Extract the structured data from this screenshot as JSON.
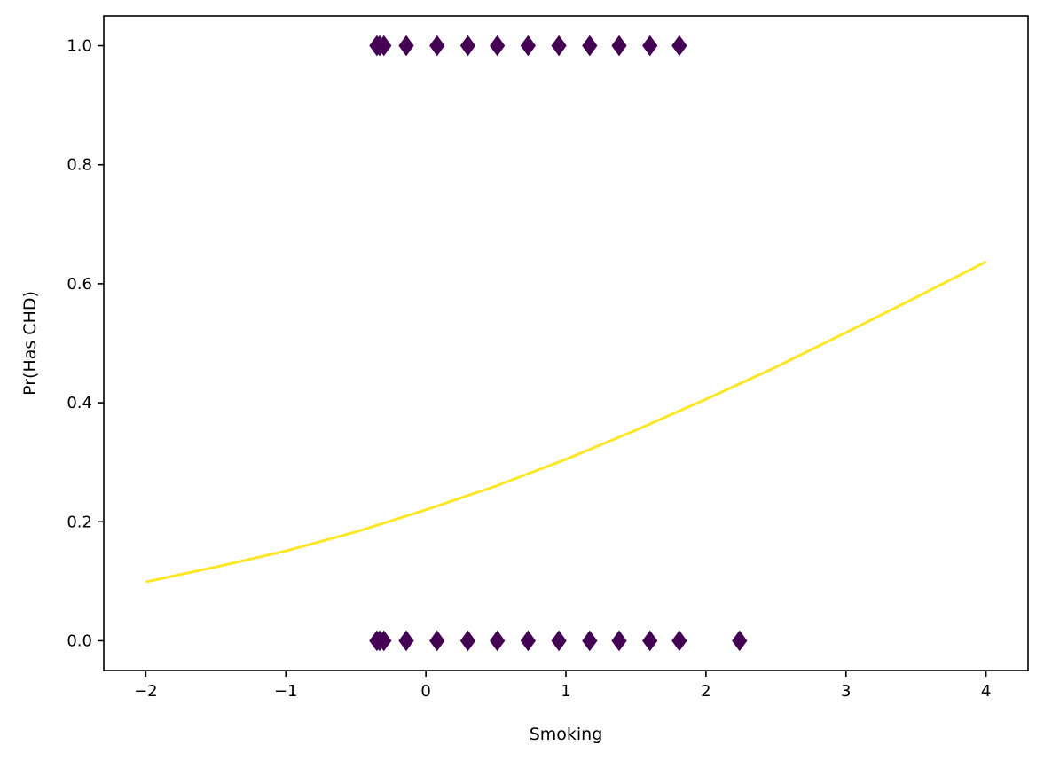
{
  "chart_data": {
    "type": "scatter",
    "xlabel": "Smoking",
    "ylabel": "Pr(Has CHD)",
    "xlim": [
      -2.3,
      4.3
    ],
    "ylim": [
      -0.05,
      1.05
    ],
    "xticks": [
      -2,
      -1,
      0,
      1,
      2,
      3,
      4
    ],
    "xtick_labels": [
      "−2",
      "−1",
      "0",
      "1",
      "2",
      "3",
      "4"
    ],
    "yticks": [
      0.0,
      0.2,
      0.4,
      0.6,
      0.8,
      1.0
    ],
    "ytick_labels": [
      "0.0",
      "0.2",
      "0.4",
      "0.6",
      "0.8",
      "1.0"
    ],
    "grid": false,
    "legend": "none",
    "series": [
      {
        "type": "scatter",
        "marker": "diamond",
        "color": "#440154",
        "x": [
          -0.35,
          -0.33,
          -0.3,
          -0.14,
          0.08,
          0.3,
          0.51,
          0.73,
          0.95,
          1.17,
          1.38,
          1.6,
          1.81,
          -0.35,
          -0.33,
          -0.3,
          -0.14,
          0.08,
          0.3,
          0.51,
          0.73,
          0.95,
          1.17,
          1.38,
          1.6,
          1.81,
          2.24
        ],
        "y": [
          1,
          1,
          1,
          1,
          1,
          1,
          1,
          1,
          1,
          1,
          1,
          1,
          1,
          0,
          0,
          0,
          0,
          0,
          0,
          0,
          0,
          0,
          0,
          0,
          0,
          0,
          0
        ]
      },
      {
        "type": "line",
        "color": "#fde725",
        "x": [
          -2.0,
          -1.5,
          -1.0,
          -0.5,
          0.0,
          0.5,
          1.0,
          1.5,
          2.0,
          2.5,
          3.0,
          3.5,
          4.0
        ],
        "y": [
          0.099,
          0.124,
          0.151,
          0.183,
          0.22,
          0.26,
          0.305,
          0.354,
          0.406,
          0.46,
          0.518,
          0.577,
          0.637
        ]
      }
    ]
  }
}
